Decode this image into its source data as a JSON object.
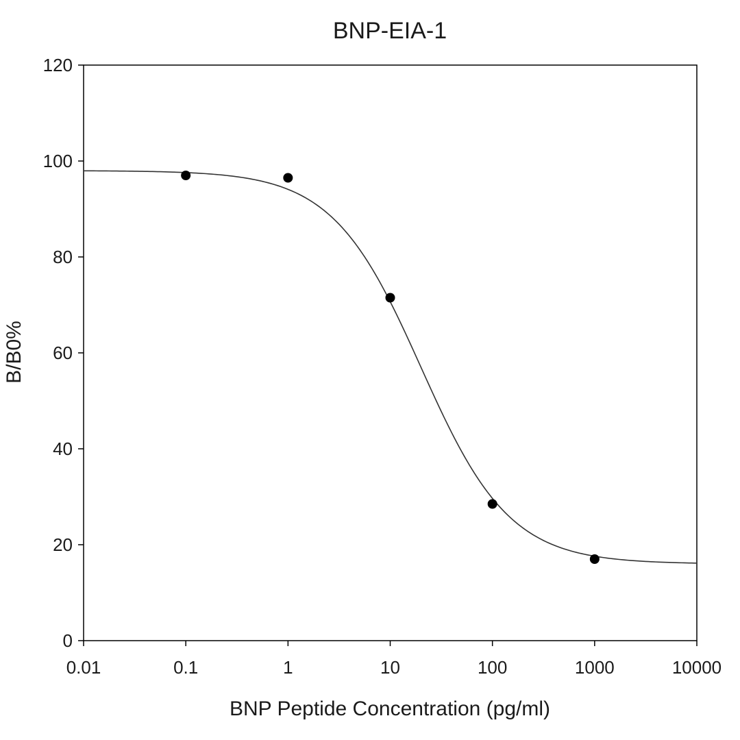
{
  "chart_data": {
    "type": "scatter",
    "title": "BNP-EIA-1",
    "xlabel": "BNP Peptide Concentration (pg/ml)",
    "ylabel": "B/B0%",
    "x_scale": "log",
    "xlim": [
      0.01,
      10000
    ],
    "ylim": [
      0,
      120
    ],
    "x_ticks": [
      0.01,
      0.1,
      1,
      10,
      100,
      1000,
      10000
    ],
    "x_tick_labels": [
      "0.01",
      "0.1",
      "1",
      "10",
      "100",
      "1000",
      "10000"
    ],
    "y_ticks": [
      0,
      20,
      40,
      60,
      80,
      100,
      120
    ],
    "y_tick_labels": [
      "0",
      "20",
      "40",
      "60",
      "80",
      "100",
      "120"
    ],
    "grid": false,
    "series": [
      {
        "x": [
          0.1,
          1,
          10,
          100,
          1000
        ],
        "y": [
          97,
          96.5,
          71.5,
          28.5,
          17
        ],
        "marker_color": "#000000"
      }
    ],
    "fit_curve": {
      "model": "4PL",
      "top": 98,
      "bottom": 16,
      "ec50": 20,
      "hill": 1,
      "color": "#333333"
    }
  }
}
